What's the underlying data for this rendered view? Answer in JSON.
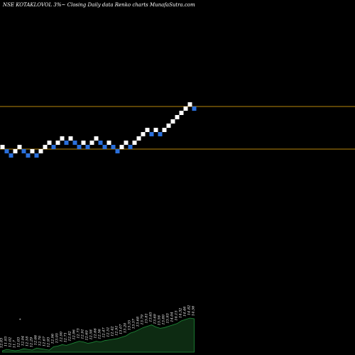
{
  "title": "NSE KOTAKLOVOL 3%~ Closing Daily data Renko charts MunafaSutra.com",
  "chart_data": {
    "type": "renko",
    "title": "NSE KOTAKLOVOL 3%~ Closing Daily data Renko charts MunafaSutra.com",
    "colors": {
      "background": "#000000",
      "up_brick": "#ffffff",
      "down_brick": "#2a6fdb",
      "reference_line": "#b8860b",
      "volume_area": "#0d2b12",
      "volume_line": "#1f8f3a"
    },
    "reference_lines": [
      "upper",
      "lower"
    ],
    "bricks": [
      {
        "level": 0,
        "dir": "up"
      },
      {
        "level": -1,
        "dir": "down"
      },
      {
        "level": -2,
        "dir": "down"
      },
      {
        "level": -1,
        "dir": "up"
      },
      {
        "level": 0,
        "dir": "up"
      },
      {
        "level": -1,
        "dir": "down"
      },
      {
        "level": -2,
        "dir": "down"
      },
      {
        "level": -1,
        "dir": "up"
      },
      {
        "level": -2,
        "dir": "down"
      },
      {
        "level": -1,
        "dir": "up"
      },
      {
        "level": 0,
        "dir": "up"
      },
      {
        "level": 1,
        "dir": "up"
      },
      {
        "level": 0,
        "dir": "down"
      },
      {
        "level": 1,
        "dir": "up"
      },
      {
        "level": 2,
        "dir": "up"
      },
      {
        "level": 1,
        "dir": "down"
      },
      {
        "level": 2,
        "dir": "up"
      },
      {
        "level": 1,
        "dir": "down"
      },
      {
        "level": 0,
        "dir": "down"
      },
      {
        "level": 1,
        "dir": "up"
      },
      {
        "level": 0,
        "dir": "down"
      },
      {
        "level": 1,
        "dir": "up"
      },
      {
        "level": 2,
        "dir": "up"
      },
      {
        "level": 1,
        "dir": "down"
      },
      {
        "level": 0,
        "dir": "down"
      },
      {
        "level": 1,
        "dir": "up"
      },
      {
        "level": 0,
        "dir": "down"
      },
      {
        "level": -1,
        "dir": "down"
      },
      {
        "level": 0,
        "dir": "up"
      },
      {
        "level": 1,
        "dir": "up"
      },
      {
        "level": 0,
        "dir": "down"
      },
      {
        "level": 1,
        "dir": "up"
      },
      {
        "level": 2,
        "dir": "up"
      },
      {
        "level": 3,
        "dir": "up"
      },
      {
        "level": 4,
        "dir": "up"
      },
      {
        "level": 3,
        "dir": "down"
      },
      {
        "level": 4,
        "dir": "up"
      },
      {
        "level": 3,
        "dir": "down"
      },
      {
        "level": 4,
        "dir": "up"
      },
      {
        "level": 5,
        "dir": "up"
      },
      {
        "level": 6,
        "dir": "up"
      },
      {
        "level": 7,
        "dir": "up"
      },
      {
        "level": 8,
        "dir": "up"
      },
      {
        "level": 9,
        "dir": "up"
      },
      {
        "level": 10,
        "dir": "up"
      },
      {
        "level": 9,
        "dir": "down"
      }
    ],
    "volume": {
      "values": [
        2,
        4,
        3,
        2,
        3,
        5,
        4,
        3,
        6,
        5,
        4,
        3,
        8,
        9,
        11,
        10,
        12,
        14,
        16,
        15,
        13,
        14,
        16,
        15,
        17,
        18,
        19,
        20,
        22,
        24,
        28,
        30,
        33,
        36,
        38,
        40,
        37,
        35,
        36,
        38,
        40,
        42,
        46,
        48,
        50,
        49
      ],
      "labels": [
        "12.03",
        "11.93",
        "12.02",
        "11.7",
        "12.03",
        "12.04",
        "12.18",
        "12.29",
        "12.66",
        "12.70",
        "12.67",
        "12.93",
        "12.96",
        "13.05",
        "12.90",
        "12.71",
        "12.82",
        "12.96",
        "12.73",
        "12.91",
        "12.60",
        "12.58",
        "12.66",
        "12.56",
        "12.47",
        "12.51",
        "12.42",
        "12.91",
        "13.07",
        "13.20",
        "13.35",
        "13.57",
        "13.68",
        "13.79",
        "13.81",
        "13.65",
        "13.69",
        "13.56",
        "13.80",
        "13.93",
        "14.04",
        "14.15",
        "14.32",
        "14.46",
        "14.82",
        "14.56"
      ],
      "marker": "*"
    }
  }
}
